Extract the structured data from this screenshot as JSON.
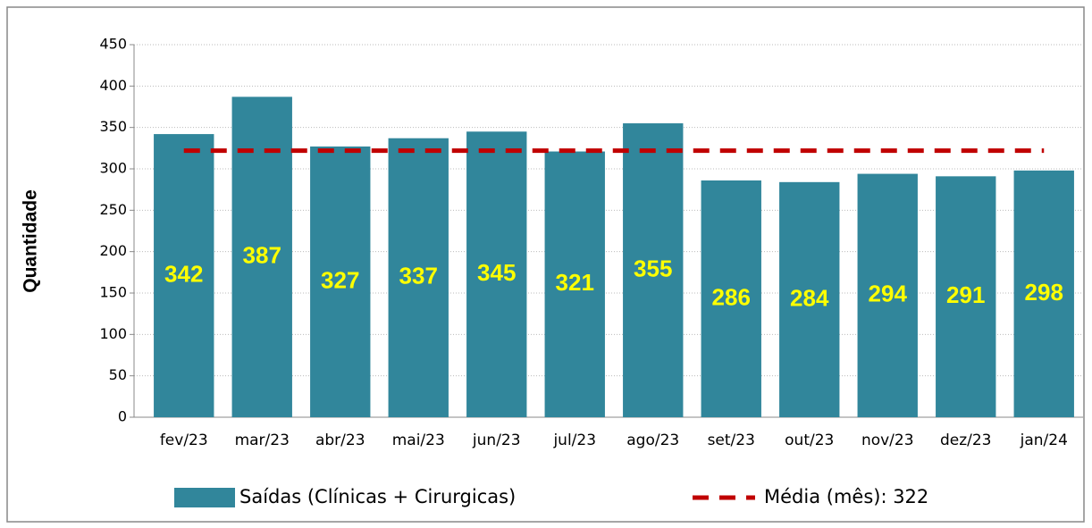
{
  "chart_data": {
    "type": "bar",
    "y_label": "Quantidade",
    "categories": [
      "fev/23",
      "mar/23",
      "abr/23",
      "mai/23",
      "jun/23",
      "jul/23",
      "ago/23",
      "set/23",
      "out/23",
      "nov/23",
      "dez/23",
      "jan/24"
    ],
    "series": [
      {
        "name": "Saídas (Clínicas + Cirurgicas)",
        "color": "#31869b",
        "values": [
          342,
          387,
          327,
          337,
          345,
          321,
          355,
          286,
          284,
          294,
          291,
          298
        ]
      },
      {
        "name": "Média (mês): 322",
        "color": "#c00000",
        "type": "line",
        "dashed": true,
        "values": [
          322,
          322,
          322,
          322,
          322,
          322,
          322,
          322,
          322,
          322,
          322,
          322
        ]
      }
    ],
    "ylim": [
      0,
      450
    ],
    "yticks": [
      0,
      50,
      100,
      150,
      200,
      250,
      300,
      350,
      400,
      450
    ],
    "grid": true,
    "legend": "bottom"
  }
}
